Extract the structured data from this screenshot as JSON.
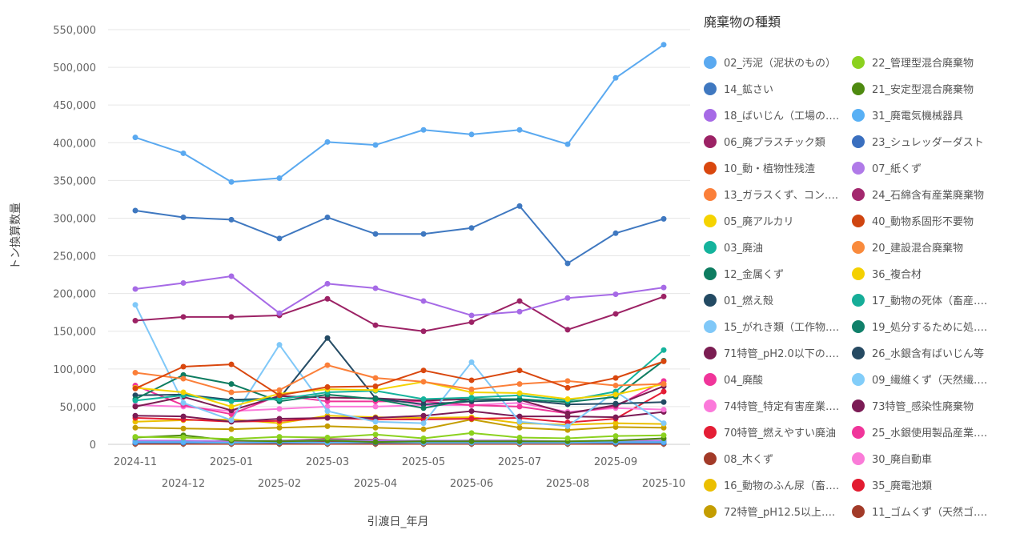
{
  "chart_data": {
    "type": "line",
    "title": "",
    "xlabel": "引渡日_年月",
    "ylabel": "トン換算数量",
    "ylim": [
      0,
      550000
    ],
    "y_ticks": [
      0,
      50000,
      100000,
      150000,
      200000,
      250000,
      300000,
      350000,
      400000,
      450000,
      500000,
      550000
    ],
    "y_tick_labels": [
      "0",
      "50,000",
      "100,000",
      "150,000",
      "200,000",
      "250,000",
      "300,000",
      "350,000",
      "400,000",
      "450,000",
      "500,000",
      "550,000"
    ],
    "categories": [
      "2024-11",
      "2024-12",
      "2025-01",
      "2025-02",
      "2025-03",
      "2025-04",
      "2025-05",
      "2025-06",
      "2025-07",
      "2025-08",
      "2025-09",
      "2025-10"
    ],
    "x_tick_labels_top": [
      "2024-11",
      "2025-01",
      "2025-03",
      "2025-05",
      "2025-07",
      "2025-09"
    ],
    "x_tick_labels_bottom": [
      "2024-12",
      "2025-02",
      "2025-04",
      "2025-06",
      "2025-08",
      "2025-10"
    ],
    "legend_title": "廃棄物の種類",
    "legend_position": "right",
    "series": [
      {
        "name": "02_汚泥（泥状のもの）",
        "color": "#5aa9f0",
        "values": [
          407000,
          386000,
          348000,
          353000,
          401000,
          397000,
          417000,
          411000,
          417000,
          398000,
          486000,
          530000
        ]
      },
      {
        "name": "22_管理型混合廃棄物",
        "color": "#8bd11f",
        "values": [
          10000,
          9000,
          7000,
          10000,
          9000,
          13000,
          8000,
          15000,
          9000,
          8000,
          11000,
          12000
        ]
      },
      {
        "name": "14_鉱さい",
        "color": "#3f78c0",
        "values": [
          310000,
          301000,
          298000,
          273000,
          301000,
          279000,
          279000,
          287000,
          316000,
          240000,
          280000,
          299000
        ]
      },
      {
        "name": "21_安定型混合廃棄物",
        "color": "#4e8a10",
        "values": [
          9000,
          12000,
          5000,
          4000,
          5000,
          3000,
          4000,
          4000,
          4000,
          4000,
          5000,
          8000
        ]
      },
      {
        "name": "18_ばいじん（工場の….",
        "color": "#a66ae6",
        "values": [
          206000,
          214000,
          223000,
          174000,
          213000,
          207000,
          190000,
          171000,
          176000,
          194000,
          199000,
          208000
        ]
      },
      {
        "name": "31_廃電気機械器具",
        "color": "#58b0f5",
        "values": [
          3000,
          3000,
          2000,
          3000,
          2000,
          3000,
          2000,
          2000,
          2000,
          2000,
          3000,
          3000
        ]
      },
      {
        "name": "06_廃プラスチック類",
        "color": "#9c2265",
        "values": [
          164000,
          169000,
          169000,
          171000,
          193000,
          158000,
          150000,
          162000,
          190000,
          152000,
          173000,
          196000
        ]
      },
      {
        "name": "23_シュレッダーダスト",
        "color": "#3a6fbf",
        "values": [
          2000,
          2000,
          2000,
          2000,
          2000,
          2000,
          2000,
          2000,
          2000,
          2000,
          2000,
          2000
        ]
      },
      {
        "name": "10_動・植物性残渣",
        "color": "#d9470e",
        "values": [
          74000,
          103000,
          106000,
          65000,
          76000,
          77000,
          98000,
          85000,
          98000,
          75000,
          88000,
          110000
        ]
      },
      {
        "name": "07_紙くず",
        "color": "#b07ae8",
        "values": [
          5000,
          5000,
          4000,
          5000,
          6000,
          5000,
          5000,
          5000,
          5000,
          4000,
          5000,
          5000
        ]
      },
      {
        "name": "13_ガラスくず、コン….",
        "color": "#fb7f39",
        "values": [
          95000,
          87000,
          69000,
          72000,
          105000,
          88000,
          83000,
          73000,
          80000,
          84000,
          78000,
          80000
        ]
      },
      {
        "name": "24_石綿含有産業廃棄物",
        "color": "#a3286e",
        "values": [
          3000,
          3000,
          3000,
          4000,
          4000,
          4000,
          3000,
          3000,
          3000,
          3000,
          3000,
          3000
        ]
      },
      {
        "name": "05_廃アルカリ",
        "color": "#f5d300",
        "values": [
          75000,
          69000,
          50000,
          67000,
          73000,
          72000,
          83000,
          69000,
          68000,
          60000,
          66000,
          80000
        ]
      },
      {
        "name": "40_動物系固形不要物",
        "color": "#cf4510",
        "values": [
          1000,
          1000,
          1000,
          1000,
          1000,
          1000,
          1000,
          1000,
          1000,
          1000,
          1000,
          1000
        ]
      },
      {
        "name": "03_廃油",
        "color": "#14b39c",
        "values": [
          58000,
          65000,
          57000,
          60000,
          69000,
          71000,
          60000,
          62000,
          65000,
          58000,
          70000,
          125000
        ]
      },
      {
        "name": "20_建設混合廃棄物",
        "color": "#f98a3c",
        "values": [
          4000,
          4000,
          3000,
          4000,
          4000,
          4000,
          4000,
          4000,
          4000,
          3000,
          4000,
          4000
        ]
      },
      {
        "name": "12_金属くず",
        "color": "#0d7c60",
        "values": [
          60000,
          92000,
          80000,
          57000,
          66000,
          60000,
          48000,
          60000,
          60000,
          56000,
          63000,
          111000
        ]
      },
      {
        "name": "36_複合材",
        "color": "#f4d000",
        "values": [
          2000,
          2000,
          2000,
          2000,
          2000,
          2000,
          2000,
          2000,
          2000,
          2000,
          2000,
          2000
        ]
      },
      {
        "name": "01_燃え殻",
        "color": "#234a63",
        "values": [
          65000,
          66000,
          59000,
          61000,
          141000,
          61000,
          53000,
          57000,
          59000,
          53000,
          54000,
          56000
        ]
      },
      {
        "name": "17_動物の死体（畜産….",
        "color": "#16ad98",
        "values": [
          1000,
          1000,
          1000,
          1000,
          1000,
          1000,
          1000,
          1000,
          1000,
          1000,
          1000,
          1000
        ]
      },
      {
        "name": "15_がれき類（工作物….",
        "color": "#80c8f8",
        "values": [
          185000,
          55000,
          32000,
          132000,
          44000,
          30000,
          28000,
          109000,
          30000,
          24000,
          70000,
          28000
        ]
      },
      {
        "name": "19_処分するために処….",
        "color": "#10806a",
        "values": [
          2000,
          2000,
          2000,
          2000,
          2000,
          2000,
          2000,
          2000,
          2000,
          2000,
          2000,
          2000
        ]
      },
      {
        "name": "71特管_pH2.0以下の….",
        "color": "#7b1d52",
        "values": [
          50000,
          63000,
          45000,
          64000,
          62000,
          61000,
          58000,
          60000,
          59000,
          41000,
          52000,
          77000
        ]
      },
      {
        "name": "26_水銀含有ばいじん等",
        "color": "#264a62",
        "values": [
          1000,
          1000,
          1000,
          1000,
          1000,
          1000,
          1000,
          1000,
          1000,
          1000,
          1000,
          1000
        ]
      },
      {
        "name": "04_廃酸",
        "color": "#f0359a",
        "values": [
          78000,
          52000,
          40000,
          65000,
          57000,
          57000,
          57000,
          52000,
          50000,
          41000,
          50000,
          84000
        ]
      },
      {
        "name": "09_繊維くず（天然繊….",
        "color": "#82cdf9",
        "values": [
          2000,
          2000,
          2000,
          2000,
          2000,
          2000,
          2000,
          2000,
          2000,
          2000,
          2000,
          2000
        ]
      },
      {
        "name": "74特管_特定有害産業….",
        "color": "#fb79da",
        "values": [
          52000,
          50000,
          44000,
          47000,
          50000,
          50000,
          52000,
          52000,
          55000,
          43000,
          48000,
          46000
        ]
      },
      {
        "name": "73特管_感染性廃棄物",
        "color": "#7b1b55",
        "values": [
          38000,
          37000,
          30000,
          34000,
          35000,
          35000,
          38000,
          44000,
          37000,
          37000,
          36000,
          43000
        ]
      },
      {
        "name": "70特管_燃えやすい廃油",
        "color": "#e41d35",
        "values": [
          35000,
          33000,
          30000,
          31000,
          35000,
          33000,
          33000,
          34000,
          35000,
          29000,
          34000,
          70000
        ]
      },
      {
        "name": "25_水銀使用製品産業….",
        "color": "#f0359a",
        "values": [
          1000,
          1000,
          1000,
          1000,
          1000,
          1000,
          1000,
          1000,
          1000,
          1000,
          1000,
          1000
        ]
      },
      {
        "name": "08_木くず",
        "color": "#a23a28",
        "values": [
          4000,
          4000,
          3000,
          5000,
          7000,
          6000,
          4000,
          5000,
          5000,
          3000,
          5000,
          4000
        ]
      },
      {
        "name": "30_廃自動車",
        "color": "#fa7bd8",
        "values": [
          1000,
          1000,
          1000,
          1000,
          1000,
          1000,
          1000,
          1000,
          1000,
          1000,
          1000,
          1000
        ]
      },
      {
        "name": "16_動物のふん尿（畜….",
        "color": "#ebbf00",
        "values": [
          30000,
          32000,
          33000,
          28000,
          38000,
          36000,
          35000,
          36000,
          28000,
          26000,
          28000,
          27000
        ]
      },
      {
        "name": "35_廃電池類",
        "color": "#e21b30",
        "values": [
          1000,
          1000,
          1000,
          1000,
          1000,
          1000,
          1000,
          1000,
          1000,
          1000,
          1000,
          1000
        ]
      },
      {
        "name": "72特管_pH12.5以上….",
        "color": "#c49d00",
        "values": [
          22000,
          21000,
          20000,
          22000,
          24000,
          22000,
          20000,
          33000,
          22000,
          19000,
          23000,
          22000
        ]
      },
      {
        "name": "11_ゴムくず（天然ゴ….",
        "color": "#a23a28",
        "values": [
          500,
          500,
          500,
          500,
          500,
          500,
          500,
          500,
          500,
          500,
          500,
          500
        ]
      }
    ]
  }
}
